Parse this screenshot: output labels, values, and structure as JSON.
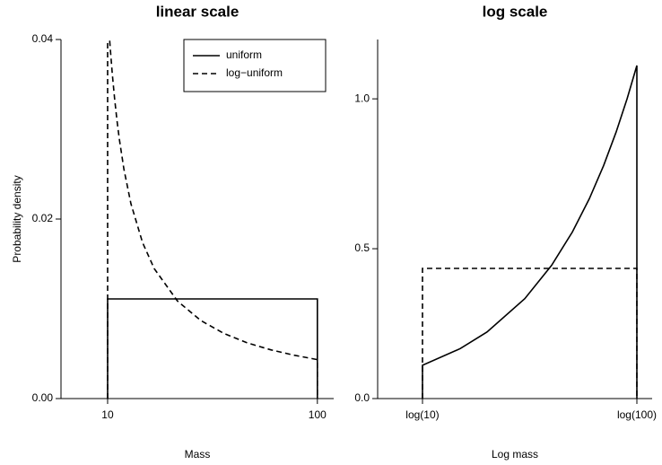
{
  "chart_data": [
    {
      "type": "line",
      "title": "linear scale",
      "xlabel": "Mass",
      "ylabel": "Probability density",
      "xlim": [
        -10,
        107
      ],
      "ylim": [
        0,
        0.04
      ],
      "xticks": [
        10,
        100
      ],
      "yticks": [
        {
          "value": 0,
          "label": "0.00"
        },
        {
          "value": 0.02,
          "label": "0.02"
        },
        {
          "value": 0.04,
          "label": "0.04"
        }
      ],
      "legend": "topright",
      "series": [
        {
          "name": "uniform",
          "color": "#000000",
          "style": "solid",
          "x": [
            10,
            10,
            100,
            100
          ],
          "values": [
            0,
            0.0111,
            0.0111,
            0
          ]
        },
        {
          "name": "log−uniform",
          "color": "#000000",
          "style": "dashed",
          "x": [
            10,
            10,
            11,
            12,
            13,
            14,
            15,
            17,
            20,
            25,
            30,
            40,
            50,
            60,
            70,
            80,
            90,
            100,
            100
          ],
          "values": [
            0,
            0.04343,
            0.03948,
            0.03619,
            0.03341,
            0.03102,
            0.02895,
            0.02555,
            0.02171,
            0.01737,
            0.01448,
            0.01086,
            0.00869,
            0.00724,
            0.0062,
            0.00543,
            0.00483,
            0.00434,
            0
          ]
        }
      ]
    },
    {
      "type": "line",
      "title": "log scale",
      "xlabel": "Log mass",
      "xlim": [
        1.821,
        4.769
      ],
      "ylim": [
        0,
        1.198
      ],
      "xticks": [
        {
          "value": 2.302585,
          "label": "log(10)"
        },
        {
          "value": 4.60517,
          "label": "log(100)"
        }
      ],
      "yticks": [
        {
          "value": 0,
          "label": "0.0"
        },
        0.5,
        {
          "value": 1,
          "label": "1.0"
        }
      ],
      "series": [
        {
          "color": "#000000",
          "style": "solid",
          "x": [
            2.302585,
            2.302585,
            2.70805,
            2.995732,
            3.401197,
            3.688879,
            3.912023,
            4.094345,
            4.248495,
            4.382027,
            4.49981,
            4.60517,
            4.60517
          ],
          "values": [
            0,
            0.1111,
            0.1667,
            0.2222,
            0.3333,
            0.4444,
            0.5556,
            0.6667,
            0.7778,
            0.8889,
            1.0,
            1.1111,
            0
          ]
        },
        {
          "color": "#000000",
          "style": "dashed",
          "x": [
            2.302585,
            2.302585,
            4.60517,
            4.60517
          ],
          "values": [
            0,
            0.4343,
            0.4343,
            0
          ]
        }
      ]
    }
  ]
}
